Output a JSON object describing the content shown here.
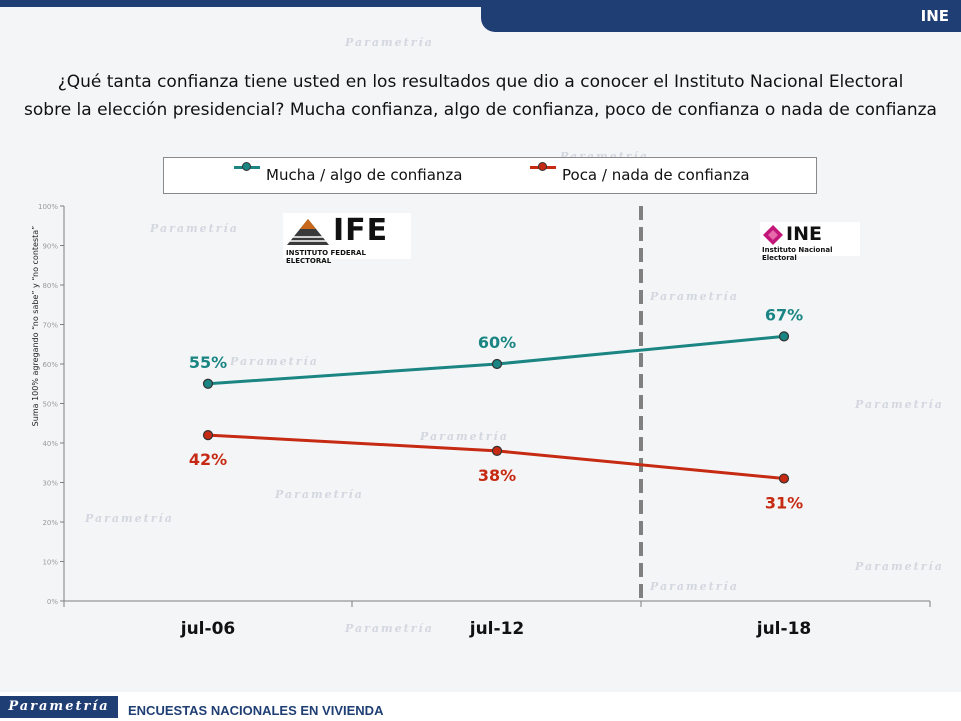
{
  "header": {
    "tab_label": "INE"
  },
  "question": {
    "line1": "¿Qué tanta confianza tiene usted en los resultados que dio a conocer el Instituto Nacional Electoral",
    "line2": "sobre la elección presidencial? Mucha confianza, algo de confianza, poco de confianza o nada de confianza"
  },
  "y_axis_note": "Suma 100% agregando “no sabe” y “no contesta”",
  "logos": {
    "ife": {
      "name": "IFE",
      "caption": "INSTITUTO FEDERAL ELECTORAL"
    },
    "ine": {
      "name": "INE",
      "caption": "Instituto Nacional Electoral"
    }
  },
  "footer": {
    "brand": "Parametría",
    "text": "ENCUESTAS NACIONALES  EN VIVIENDA"
  },
  "watermark": "Parametría",
  "chart_data": {
    "type": "line",
    "title": "",
    "xlabel": "",
    "ylabel": "",
    "categories": [
      "jul-06",
      "jul-12",
      "jul-18"
    ],
    "ylim": [
      0,
      100
    ],
    "yticks": [
      "0%",
      "10%",
      "20%",
      "30%",
      "40%",
      "50%",
      "60%",
      "70%",
      "80%",
      "90%",
      "100%"
    ],
    "legend_position": "top",
    "divider_between": [
      "jul-12",
      "jul-18"
    ],
    "series": [
      {
        "name": "Mucha / algo de confianza",
        "values": [
          55,
          60,
          67
        ],
        "labels": [
          "55%",
          "60%",
          "67%"
        ],
        "color": "#1a8582",
        "label_side": "above"
      },
      {
        "name": "Poca / nada de confianza",
        "values": [
          42,
          38,
          31
        ],
        "labels": [
          "42%",
          "38%",
          "31%"
        ],
        "color": "#c62a12",
        "label_side": "below"
      }
    ]
  }
}
